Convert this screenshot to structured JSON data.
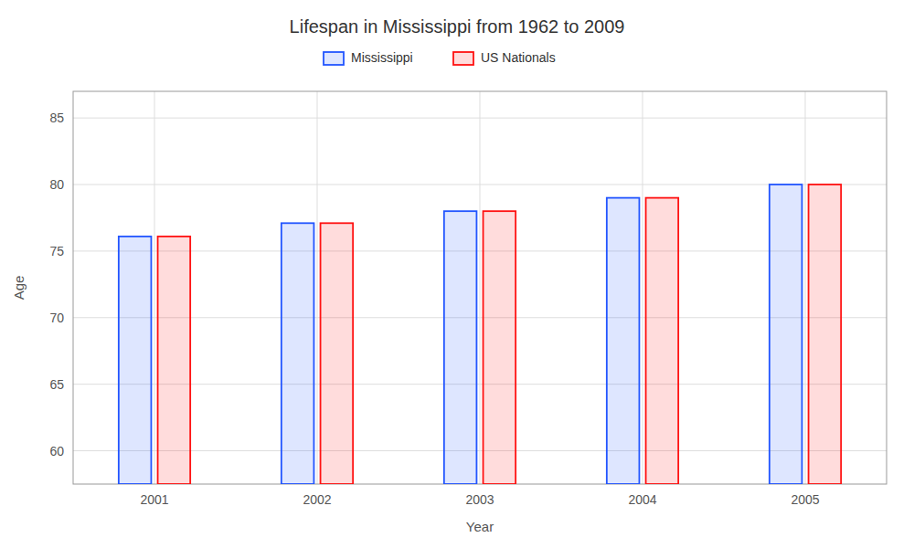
{
  "chart_data": {
    "type": "bar",
    "title": "Lifespan in Mississippi from 1962 to 2009",
    "xlabel": "Year",
    "ylabel": "Age",
    "categories": [
      "2001",
      "2002",
      "2003",
      "2004",
      "2005"
    ],
    "series": [
      {
        "name": "Mississippi",
        "color": "#2255FF",
        "values": [
          76.1,
          77.1,
          78.0,
          79.0,
          80.0
        ]
      },
      {
        "name": "US Nationals",
        "color": "#FF1111",
        "values": [
          76.1,
          77.1,
          78.0,
          79.0,
          80.0
        ]
      }
    ],
    "ylim": [
      57.5,
      87
    ],
    "yticks": [
      60,
      65,
      70,
      75,
      80,
      85
    ],
    "grid": true,
    "legend": "top"
  }
}
